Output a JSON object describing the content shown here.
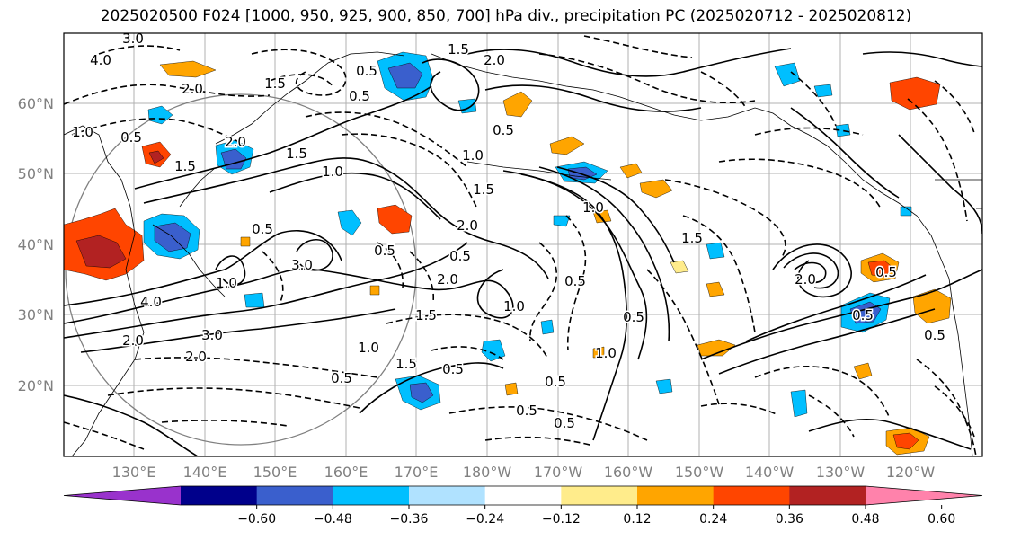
{
  "title": "2025020500 F024 [1000, 950, 925, 900, 850, 700] hPa div., precipitation PC (2025020712 - 2025020812)",
  "map": {
    "lat_labels": [
      "60°N",
      "50°N",
      "40°N",
      "30°N",
      "20°N"
    ],
    "lon_labels": [
      "130°E",
      "140°E",
      "150°E",
      "160°E",
      "170°E",
      "180°W",
      "170°W",
      "160°W",
      "150°W",
      "140°W",
      "130°W",
      "120°W"
    ],
    "gridline_color": "#b0b0b0",
    "contour_labels": [
      "3.0",
      "4.0",
      "2.0",
      "1.0",
      "0.5",
      "1.5",
      "2.0",
      "1.5",
      "0.5",
      "1.0",
      "0.5",
      "1.0",
      "3.0",
      "4.0",
      "2.0",
      "3.0",
      "2.0",
      "1.5",
      "0.5",
      "1.5",
      "2.0",
      "1.0",
      "0.5",
      "1.5",
      "2.0",
      "0.5",
      "1.0",
      "2.0",
      "1.5",
      "0.5",
      "1.0",
      "0.5",
      "1.5",
      "0.5",
      "0.5",
      "1.0",
      "0.5",
      "0.5",
      "0.5",
      "1.0",
      "0.5",
      "1.5",
      "2.0",
      "0.5",
      "0.5",
      "0.5"
    ]
  },
  "colorbar": {
    "colors": [
      "#9932cc",
      "#00008b",
      "#3a5fcd",
      "#00bfff",
      "#b0e2ff",
      "#ffffff",
      "#ffec8b",
      "#ffa500",
      "#ff4500",
      "#b22222",
      "#ff82ab"
    ],
    "tick_labels": [
      "−0.60",
      "−0.48",
      "−0.36",
      "−0.24",
      "−0.12",
      "0.12",
      "0.24",
      "0.36",
      "0.48",
      "0.60"
    ]
  }
}
